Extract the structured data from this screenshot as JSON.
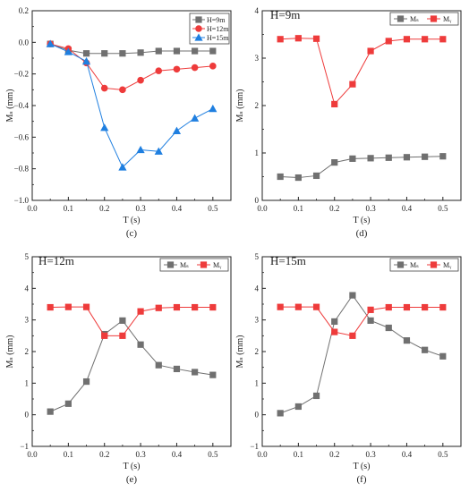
{
  "chart_data": [
    {
      "id": "c",
      "panel_label": "(c)",
      "type": "line",
      "title": "",
      "xlabel": "T (s)",
      "ylabel": "Mₛ (mm)",
      "xlim": [
        0.0,
        0.55
      ],
      "ylim": [
        -1.0,
        0.2
      ],
      "xticks": [
        0.0,
        0.1,
        0.2,
        0.3,
        0.4,
        0.5
      ],
      "xtick_labels": [
        "0.0",
        "0.1",
        "0.2",
        "0.3",
        "0.4",
        "0.5"
      ],
      "yticks": [
        -1.0,
        -0.8,
        -0.6,
        -0.4,
        -0.2,
        0.0,
        0.2
      ],
      "ytick_labels": [
        "−1.0",
        "−0.8",
        "−0.6",
        "−0.4",
        "−0.2",
        "0.0",
        "0.2"
      ],
      "legend_position": "top-right",
      "x": [
        0.05,
        0.1,
        0.15,
        0.2,
        0.25,
        0.3,
        0.35,
        0.4,
        0.45,
        0.5
      ],
      "series": [
        {
          "name": "H=9m",
          "color": "#707070",
          "marker": "square",
          "values": [
            -0.01,
            -0.05,
            -0.07,
            -0.07,
            -0.07,
            -0.065,
            -0.055,
            -0.055,
            -0.055,
            -0.055
          ]
        },
        {
          "name": "H=12m",
          "color": "#ee3b3b",
          "marker": "circle",
          "values": [
            -0.01,
            -0.04,
            -0.13,
            -0.29,
            -0.3,
            -0.24,
            -0.18,
            -0.17,
            -0.16,
            -0.15
          ]
        },
        {
          "name": "H=15m",
          "color": "#1f7fe0",
          "marker": "triangle",
          "values": [
            -0.01,
            -0.06,
            -0.12,
            -0.54,
            -0.79,
            -0.68,
            -0.69,
            -0.56,
            -0.48,
            -0.42
          ]
        }
      ]
    },
    {
      "id": "d",
      "panel_label": "(d)",
      "type": "line",
      "title": "H=9m",
      "xlabel": "T (s)",
      "ylabel": "Mₛ (mm)",
      "xlim": [
        0.0,
        0.55
      ],
      "ylim": [
        0,
        4
      ],
      "xticks": [
        0.0,
        0.1,
        0.2,
        0.3,
        0.4,
        0.5
      ],
      "xtick_labels": [
        "0.0",
        "0.1",
        "0.2",
        "0.3",
        "0.4",
        "0.5"
      ],
      "yticks": [
        0,
        1,
        2,
        3,
        4
      ],
      "ytick_labels": [
        "0",
        "1",
        "2",
        "3",
        "4"
      ],
      "legend_position": "top-right",
      "x": [
        0.05,
        0.1,
        0.15,
        0.2,
        0.25,
        0.3,
        0.35,
        0.4,
        0.45,
        0.5
      ],
      "series": [
        {
          "name": "Mₛ",
          "color": "#707070",
          "marker": "square",
          "values": [
            0.5,
            0.48,
            0.52,
            0.8,
            0.88,
            0.89,
            0.9,
            0.91,
            0.92,
            0.93
          ]
        },
        {
          "name": "Mᵧ",
          "color": "#ee3b3b",
          "marker": "square",
          "values": [
            3.4,
            3.42,
            3.41,
            2.03,
            2.45,
            3.15,
            3.36,
            3.4,
            3.4,
            3.4
          ]
        }
      ]
    },
    {
      "id": "e",
      "panel_label": "(e)",
      "type": "line",
      "title": "H=12m",
      "xlabel": "T (s)",
      "ylabel": "Mₛ (mm)",
      "xlim": [
        0.0,
        0.55
      ],
      "ylim": [
        -1,
        5
      ],
      "xticks": [
        0.0,
        0.1,
        0.2,
        0.3,
        0.4,
        0.5
      ],
      "xtick_labels": [
        "0.0",
        "0.1",
        "0.2",
        "0.3",
        "0.4",
        "0.5"
      ],
      "yticks": [
        -1,
        0,
        1,
        2,
        3,
        4,
        5
      ],
      "ytick_labels": [
        "−1",
        "0",
        "1",
        "2",
        "3",
        "4",
        "5"
      ],
      "legend_position": "top-right",
      "x": [
        0.05,
        0.1,
        0.15,
        0.2,
        0.25,
        0.3,
        0.35,
        0.4,
        0.45,
        0.5
      ],
      "series": [
        {
          "name": "Mₛ",
          "color": "#707070",
          "marker": "square",
          "values": [
            0.1,
            0.35,
            1.05,
            2.55,
            2.98,
            2.22,
            1.57,
            1.45,
            1.35,
            1.26
          ]
        },
        {
          "name": "Mᵧ",
          "color": "#ee3b3b",
          "marker": "square",
          "values": [
            3.4,
            3.41,
            3.41,
            2.5,
            2.5,
            3.27,
            3.38,
            3.4,
            3.4,
            3.4
          ]
        }
      ]
    },
    {
      "id": "f",
      "panel_label": "(f)",
      "type": "line",
      "title": "H=15m",
      "xlabel": "T (s)",
      "ylabel": "Mₛ (mm)",
      "xlim": [
        0.0,
        0.55
      ],
      "ylim": [
        -1,
        5
      ],
      "xticks": [
        0.0,
        0.1,
        0.2,
        0.3,
        0.4,
        0.5
      ],
      "xtick_labels": [
        "0.0",
        "0.1",
        "0.2",
        "0.3",
        "0.4",
        "0.5"
      ],
      "yticks": [
        -1,
        0,
        1,
        2,
        3,
        4,
        5
      ],
      "ytick_labels": [
        "−1",
        "0",
        "1",
        "2",
        "3",
        "4",
        "5"
      ],
      "legend_position": "top-right",
      "x": [
        0.05,
        0.1,
        0.15,
        0.2,
        0.25,
        0.3,
        0.35,
        0.4,
        0.45,
        0.5
      ],
      "series": [
        {
          "name": "Mₛ",
          "color": "#707070",
          "marker": "square",
          "values": [
            0.05,
            0.26,
            0.6,
            2.95,
            3.78,
            2.98,
            2.75,
            2.35,
            2.05,
            1.85
          ]
        },
        {
          "name": "Mᵧ",
          "color": "#ee3b3b",
          "marker": "square",
          "values": [
            3.41,
            3.41,
            3.41,
            2.62,
            2.5,
            3.32,
            3.4,
            3.4,
            3.4,
            3.4
          ]
        }
      ]
    }
  ]
}
